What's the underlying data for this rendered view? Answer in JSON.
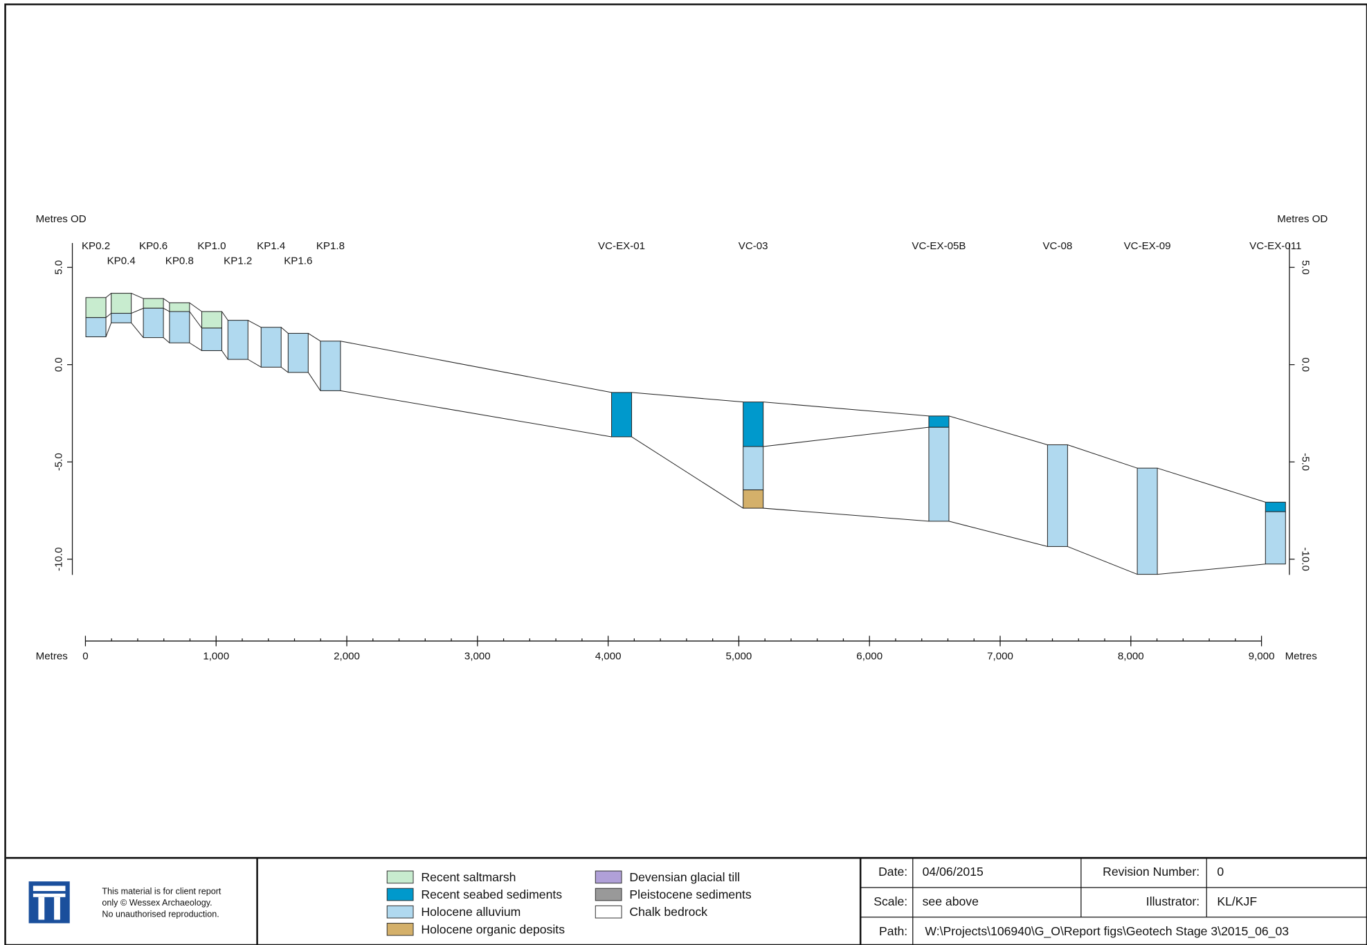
{
  "axes": {
    "y_label_left": "Metres OD",
    "y_label_right": "Metres OD",
    "x_label_left": "Metres",
    "x_label_right": "Metres",
    "yticks": [
      {
        "value": 5,
        "label": "5.0"
      },
      {
        "value": 0,
        "label": "0.0"
      },
      {
        "value": -5,
        "label": "-5.0"
      },
      {
        "value": -10,
        "label": "-10.0"
      }
    ],
    "xticks": [
      0,
      {
        "value": 1000,
        "label": "1,000"
      },
      {
        "value": 2000,
        "label": "2,000"
      },
      {
        "value": 3000,
        "label": "3,000"
      },
      {
        "value": 4000,
        "label": "4,000"
      },
      {
        "value": 5000,
        "label": "5,000"
      },
      {
        "value": 6000,
        "label": "6,000"
      },
      {
        "value": 7000,
        "label": "7,000"
      },
      {
        "value": 8000,
        "label": "8,000"
      },
      {
        "value": 9000,
        "label": "9,000"
      }
    ]
  },
  "boreholes": [
    {
      "name": "KP0.2",
      "x": 80,
      "layers": [
        {
          "unit": "Recent saltmarsh",
          "top": 3.45,
          "base": 2.42
        },
        {
          "unit": "Holocene alluvium",
          "top": 2.42,
          "base": 1.43
        }
      ]
    },
    {
      "name": "KP0.4",
      "x": 274,
      "layers": [
        {
          "unit": "Recent saltmarsh",
          "top": 3.67,
          "base": 2.64
        },
        {
          "unit": "Holocene alluvium",
          "top": 2.64,
          "base": 2.15
        }
      ]
    },
    {
      "name": "KP0.6",
      "x": 520,
      "layers": [
        {
          "unit": "Recent saltmarsh",
          "top": 3.4,
          "base": 2.9
        },
        {
          "unit": "Holocene alluvium",
          "top": 2.9,
          "base": 1.39
        }
      ]
    },
    {
      "name": "KP0.8",
      "x": 720,
      "layers": [
        {
          "unit": "Recent saltmarsh",
          "top": 3.18,
          "base": 2.73
        },
        {
          "unit": "Holocene alluvium",
          "top": 2.73,
          "base": 1.12
        }
      ]
    },
    {
      "name": "KP1.0",
      "x": 967,
      "layers": [
        {
          "unit": "Recent saltmarsh",
          "top": 2.73,
          "base": 1.88
        },
        {
          "unit": "Holocene alluvium",
          "top": 1.88,
          "base": 0.72
        }
      ]
    },
    {
      "name": "KP1.2",
      "x": 1167,
      "layers": [
        {
          "unit": "Holocene alluvium",
          "top": 2.28,
          "base": 0.27
        }
      ]
    },
    {
      "name": "KP1.4",
      "x": 1421,
      "layers": [
        {
          "unit": "Holocene alluvium",
          "top": 1.92,
          "base": -0.13
        }
      ]
    },
    {
      "name": "KP1.6",
      "x": 1628,
      "layers": [
        {
          "unit": "Holocene alluvium",
          "top": 1.61,
          "base": -0.4
        }
      ]
    },
    {
      "name": "KP1.8",
      "x": 1875,
      "layers": [
        {
          "unit": "Holocene alluvium",
          "top": 1.21,
          "base": -1.34
        }
      ]
    },
    {
      "name": "VC-EX-01",
      "x": 4103,
      "layers": [
        {
          "unit": "Recent seabed sediments",
          "top": -1.43,
          "base": -3.71
        }
      ]
    },
    {
      "name": "VC-03",
      "x": 5110,
      "layers": [
        {
          "unit": "Recent seabed sediments",
          "top": -1.92,
          "base": -4.21
        },
        {
          "unit": "Holocene alluvium",
          "top": -4.21,
          "base": -6.44
        },
        {
          "unit": "Holocene organic deposits",
          "top": -6.44,
          "base": -7.38
        }
      ]
    },
    {
      "name": "VC-EX-05B",
      "x": 6531,
      "layers": [
        {
          "unit": "Recent seabed sediments",
          "top": -2.64,
          "base": -3.22
        },
        {
          "unit": "Holocene alluvium",
          "top": -3.22,
          "base": -8.05
        }
      ]
    },
    {
      "name": "VC-08",
      "x": 7439,
      "layers": [
        {
          "unit": "Holocene alluvium",
          "top": -4.12,
          "base": -9.35
        }
      ]
    },
    {
      "name": "VC-EX-09",
      "x": 8126,
      "layers": [
        {
          "unit": "Holocene alluvium",
          "top": -5.32,
          "base": -10.78
        }
      ]
    },
    {
      "name": "VC-EX-011",
      "x": 9107,
      "layers": [
        {
          "unit": "Recent seabed sediments",
          "top": -7.07,
          "base": -7.56
        },
        {
          "unit": "Holocene alluvium",
          "top": -7.56,
          "base": -10.25
        }
      ]
    }
  ],
  "legend": [
    {
      "label": "Recent saltmarsh",
      "color": "#c8eccf"
    },
    {
      "label": "Recent seabed sediments",
      "color": "#0099cc"
    },
    {
      "label": "Holocene alluvium",
      "color": "#b0d9ef"
    },
    {
      "label": "Holocene organic deposits",
      "color": "#d4b06a"
    },
    {
      "label": "Devensian glacial till",
      "color": "#b0a0d8"
    },
    {
      "label": "Pleistocene sediments",
      "color": "#999999"
    },
    {
      "label": "Chalk bedrock",
      "color": "#ffffff"
    }
  ],
  "footer": {
    "notice": [
      "This material is for client report",
      "only © Wessex Archaeology.",
      "No unauthorised reproduction."
    ],
    "date_label": "Date:",
    "date": "04/06/2015",
    "revision_label": "Revision Number:",
    "revision": "0",
    "scale_label": "Scale:",
    "scale": "see above",
    "illustrator_label": "Illustrator:",
    "illustrator": "KL/KJF",
    "path_label": "Path:",
    "path": "W:\\Projects\\106940\\G_O\\Report figs\\Geotech Stage 3\\2015_06_03"
  }
}
